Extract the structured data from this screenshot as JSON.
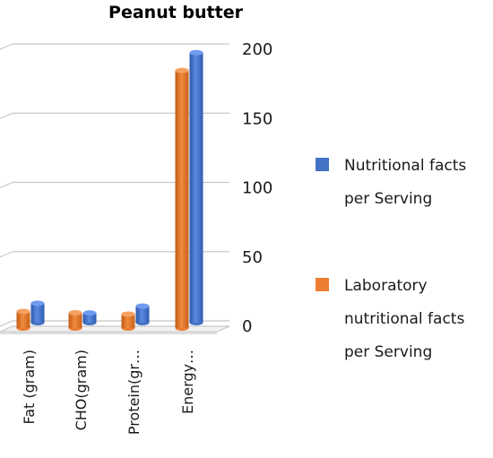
{
  "chart_data": {
    "type": "bar",
    "title": "Peanut butter",
    "categories": [
      "Fat (gram)",
      "CHO(gram)",
      "Protein(gr…",
      "Energy…"
    ],
    "series": [
      {
        "name": "Laboratory nutritional facts per Serving",
        "values": [
          12,
          11,
          10,
          186
        ],
        "color": "#ed7d31"
      },
      {
        "name": "Nutritional facts per Serving",
        "values": [
          14,
          7,
          12,
          195
        ],
        "color": "#4472c4"
      }
    ],
    "legend_order": [
      1,
      0
    ],
    "legend_lines": [
      [
        "Nutritional facts",
        "per Serving"
      ],
      [
        "Laboratory",
        "nutritional facts",
        "per Serving"
      ]
    ],
    "yticks": [
      "0",
      "50",
      "100",
      "150",
      "200"
    ],
    "ylim": [
      0,
      200
    ],
    "grid": true,
    "legend_position": "right",
    "xlabel": "",
    "ylabel": ""
  }
}
